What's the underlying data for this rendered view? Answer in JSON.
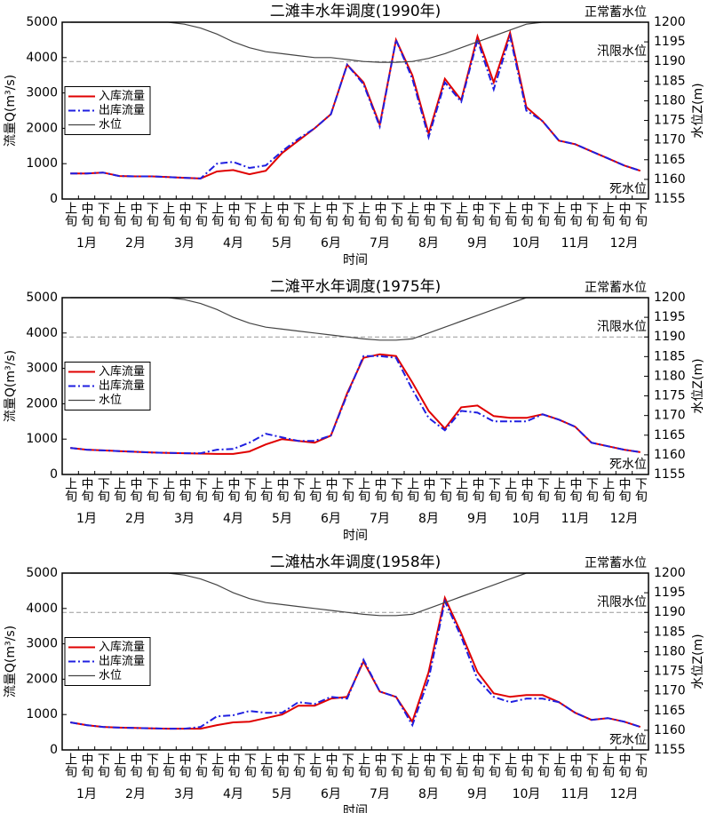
{
  "chart_data": [
    {
      "type": "line",
      "title": "二滩丰水年调度(1990年)",
      "x_label": "时间",
      "y_label": "流量Q(m³/s)",
      "y2_label": "水位Z(m)",
      "categories": [
        "上旬",
        "中旬",
        "下旬",
        "上旬",
        "中旬",
        "下旬",
        "上旬",
        "中旬",
        "下旬",
        "上旬",
        "中旬",
        "下旬",
        "上旬",
        "中旬",
        "下旬",
        "上旬",
        "中旬",
        "下旬",
        "上旬",
        "中旬",
        "下旬",
        "上旬",
        "中旬",
        "下旬",
        "上旬",
        "中旬",
        "下旬",
        "上旬",
        "中旬",
        "下旬",
        "上旬",
        "中旬",
        "下旬",
        "上旬",
        "中旬",
        "下旬"
      ],
      "months": [
        "1月",
        "2月",
        "3月",
        "4月",
        "5月",
        "6月",
        "7月",
        "8月",
        "9月",
        "10月",
        "11月",
        "12月"
      ],
      "series": [
        {
          "name": "入库流量",
          "color": "#e00000",
          "linestyle": "solid",
          "values": [
            720,
            720,
            750,
            650,
            640,
            640,
            620,
            600,
            580,
            780,
            820,
            700,
            800,
            1300,
            1650,
            2000,
            2400,
            3800,
            3300,
            2100,
            4500,
            3500,
            1850,
            3400,
            2800,
            4600,
            3300,
            4700,
            2600,
            2200,
            1650,
            1550,
            1350,
            1150,
            950,
            800
          ]
        },
        {
          "name": "出库流量",
          "color": "#1f1fe0",
          "linestyle": "dashdot",
          "values": [
            720,
            720,
            750,
            650,
            640,
            640,
            620,
            600,
            580,
            1000,
            1050,
            880,
            950,
            1350,
            1700,
            2000,
            2400,
            3800,
            3250,
            2050,
            4500,
            3400,
            1750,
            3300,
            2750,
            4500,
            3100,
            4600,
            2500,
            2200,
            1650,
            1550,
            1350,
            1150,
            950,
            800
          ]
        },
        {
          "name": "水位",
          "color": "#444444",
          "linestyle": "solid",
          "axis": "y2",
          "values": [
            1200,
            1200,
            1200,
            1200,
            1200,
            1200,
            1200,
            1199.5,
            1198.5,
            1197,
            1195,
            1193.5,
            1192.5,
            1192,
            1191.5,
            1191,
            1191,
            1190.5,
            1190,
            1189.8,
            1189.8,
            1190,
            1190.8,
            1192,
            1193.5,
            1195,
            1196.5,
            1198,
            1199.5,
            1200,
            1200,
            1200,
            1200,
            1200,
            1200,
            1200
          ]
        }
      ],
      "ylim": [
        0,
        5000
      ],
      "yticks": [
        0,
        1000,
        2000,
        3000,
        4000,
        5000
      ],
      "y2lim": [
        1155,
        1200
      ],
      "y2ticks": [
        1155,
        1160,
        1165,
        1170,
        1175,
        1180,
        1185,
        1190,
        1195,
        1200
      ],
      "annotations": [
        {
          "text": "正常蓄水位",
          "value": 1200
        },
        {
          "text": "汛限水位",
          "value": 1190
        },
        {
          "text": "死水位",
          "value": 1155
        }
      ],
      "legend": "center left"
    },
    {
      "type": "line",
      "title": "二滩平水年调度(1975年)",
      "x_label": "时间",
      "y_label": "流量Q(m³/s)",
      "y2_label": "水位Z(m)",
      "categories": [
        "上旬",
        "中旬",
        "下旬",
        "上旬",
        "中旬",
        "下旬",
        "上旬",
        "中旬",
        "下旬",
        "上旬",
        "中旬",
        "下旬",
        "上旬",
        "中旬",
        "下旬",
        "上旬",
        "中旬",
        "下旬",
        "上旬",
        "中旬",
        "下旬",
        "上旬",
        "中旬",
        "下旬",
        "上旬",
        "中旬",
        "下旬",
        "上旬",
        "中旬",
        "下旬",
        "上旬",
        "中旬",
        "下旬",
        "上旬",
        "中旬",
        "下旬"
      ],
      "months": [
        "1月",
        "2月",
        "3月",
        "4月",
        "5月",
        "6月",
        "7月",
        "8月",
        "9月",
        "10月",
        "11月",
        "12月"
      ],
      "series": [
        {
          "name": "入库流量",
          "color": "#e00000",
          "linestyle": "solid",
          "values": [
            750,
            700,
            680,
            660,
            640,
            620,
            610,
            600,
            590,
            580,
            580,
            650,
            850,
            1000,
            950,
            900,
            1100,
            2300,
            3300,
            3400,
            3350,
            2600,
            1800,
            1300,
            1900,
            1950,
            1650,
            1600,
            1600,
            1700,
            1550,
            1350,
            900,
            800,
            700,
            630
          ]
        },
        {
          "name": "出库流量",
          "color": "#1f1fe0",
          "linestyle": "dashdot",
          "values": [
            750,
            700,
            680,
            660,
            640,
            620,
            610,
            600,
            600,
            700,
            720,
            900,
            1150,
            1050,
            950,
            950,
            1100,
            2250,
            3350,
            3350,
            3300,
            2400,
            1600,
            1250,
            1800,
            1750,
            1500,
            1500,
            1500,
            1700,
            1550,
            1350,
            900,
            800,
            700,
            630
          ]
        },
        {
          "name": "水位",
          "color": "#444444",
          "linestyle": "solid",
          "axis": "y2",
          "values": [
            1200,
            1200,
            1200,
            1200,
            1200,
            1200,
            1200,
            1199.5,
            1198.5,
            1197,
            1195,
            1193.5,
            1192.5,
            1192,
            1191.5,
            1191,
            1190.5,
            1190,
            1189.5,
            1189.2,
            1189.2,
            1189.5,
            1191,
            1192.5,
            1194,
            1195.5,
            1197,
            1198.5,
            1200,
            1200,
            1200,
            1200,
            1200,
            1200,
            1200,
            1200
          ]
        }
      ],
      "ylim": [
        0,
        5000
      ],
      "yticks": [
        0,
        1000,
        2000,
        3000,
        4000,
        5000
      ],
      "y2lim": [
        1155,
        1200
      ],
      "y2ticks": [
        1155,
        1160,
        1165,
        1170,
        1175,
        1180,
        1185,
        1190,
        1195,
        1200
      ],
      "annotations": [
        {
          "text": "正常蓄水位",
          "value": 1200
        },
        {
          "text": "汛限水位",
          "value": 1190
        },
        {
          "text": "死水位",
          "value": 1155
        }
      ],
      "legend": "center left"
    },
    {
      "type": "line",
      "title": "二滩枯水年调度(1958年)",
      "x_label": "时间",
      "y_label": "流量Q(m³/s)",
      "y2_label": "水位Z(m)",
      "categories": [
        "上旬",
        "中旬",
        "下旬",
        "上旬",
        "中旬",
        "下旬",
        "上旬",
        "中旬",
        "下旬",
        "上旬",
        "中旬",
        "下旬",
        "上旬",
        "中旬",
        "下旬",
        "上旬",
        "中旬",
        "下旬",
        "上旬",
        "中旬",
        "下旬",
        "上旬",
        "中旬",
        "下旬",
        "上旬",
        "中旬",
        "下旬",
        "上旬",
        "中旬",
        "下旬",
        "上旬",
        "中旬",
        "下旬",
        "上旬",
        "中旬",
        "下旬"
      ],
      "months": [
        "1月",
        "2月",
        "3月",
        "4月",
        "5月",
        "6月",
        "7月",
        "8月",
        "9月",
        "10月",
        "11月",
        "12月"
      ],
      "series": [
        {
          "name": "入库流量",
          "color": "#e00000",
          "linestyle": "solid",
          "values": [
            780,
            700,
            650,
            630,
            620,
            610,
            600,
            600,
            600,
            700,
            780,
            800,
            900,
            1000,
            1250,
            1250,
            1450,
            1500,
            2500,
            1650,
            1500,
            800,
            2200,
            4300,
            3300,
            2200,
            1600,
            1500,
            1550,
            1550,
            1350,
            1050,
            850,
            900,
            800,
            650
          ]
        },
        {
          "name": "出库流量",
          "color": "#1f1fe0",
          "linestyle": "dashdot",
          "values": [
            780,
            700,
            650,
            630,
            620,
            610,
            600,
            600,
            650,
            950,
            980,
            1100,
            1050,
            1050,
            1350,
            1300,
            1500,
            1450,
            2550,
            1650,
            1500,
            700,
            2000,
            4200,
            3200,
            2000,
            1500,
            1350,
            1450,
            1450,
            1350,
            1050,
            850,
            900,
            800,
            650
          ]
        },
        {
          "name": "水位",
          "color": "#444444",
          "linestyle": "solid",
          "axis": "y2",
          "values": [
            1200,
            1200,
            1200,
            1200,
            1200,
            1200,
            1200,
            1199.5,
            1198.5,
            1197,
            1195,
            1193.5,
            1192.5,
            1192,
            1191.5,
            1191,
            1190.5,
            1190,
            1189.5,
            1189.2,
            1189.2,
            1189.5,
            1191,
            1192.5,
            1194,
            1195.5,
            1197,
            1198.5,
            1200,
            1200,
            1200,
            1200,
            1200,
            1200,
            1200,
            1200
          ]
        }
      ],
      "ylim": [
        0,
        5000
      ],
      "yticks": [
        0,
        1000,
        2000,
        3000,
        4000,
        5000
      ],
      "y2lim": [
        1155,
        1200
      ],
      "y2ticks": [
        1155,
        1160,
        1165,
        1170,
        1175,
        1180,
        1185,
        1190,
        1195,
        1200
      ],
      "annotations": [
        {
          "text": "正常蓄水位",
          "value": 1200
        },
        {
          "text": "汛限水位",
          "value": 1190
        },
        {
          "text": "死水位",
          "value": 1155
        }
      ],
      "legend": "center left"
    }
  ]
}
